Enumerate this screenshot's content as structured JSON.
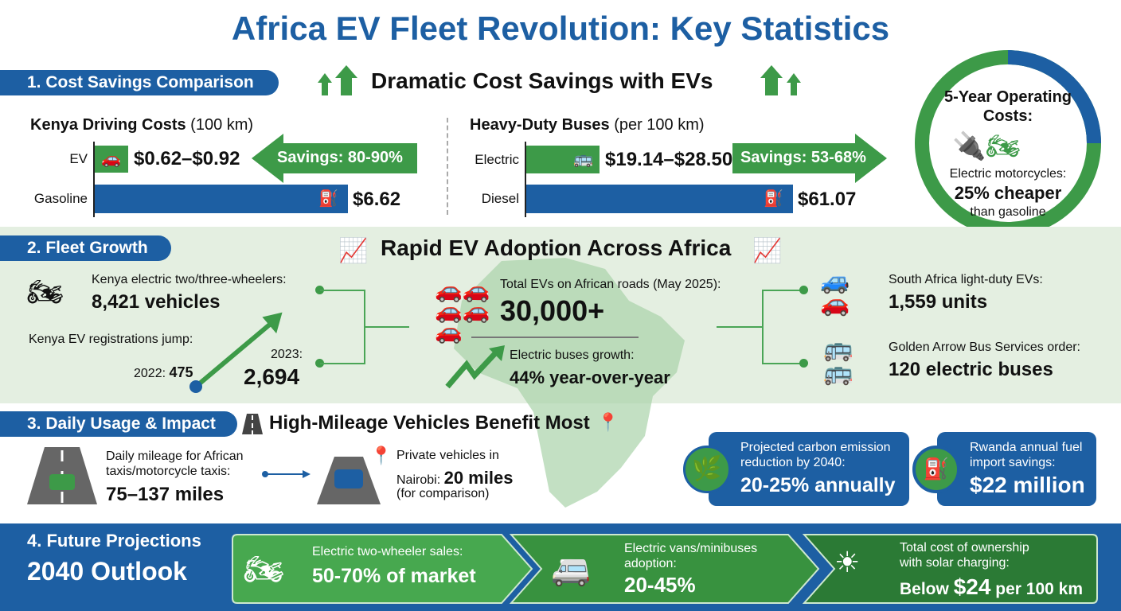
{
  "title": "Africa EV Fleet Revolution: Key Statistics",
  "colors": {
    "blue": "#1d5fa3",
    "green": "#3d9a48",
    "light_green": "#e4efe1"
  },
  "s1": {
    "pill": "1. Cost Savings Comparison",
    "heading": "Dramatic Cost Savings with EVs",
    "kenya": {
      "title": "Kenya Driving Costs",
      "unit": "(100 km)",
      "ev_label": "EV",
      "ev_value": "$0.62–$0.92",
      "gas_label": "Gasoline",
      "gas_value": "$6.62",
      "savings": "Savings: 80-90%"
    },
    "bus": {
      "title": "Heavy-Duty Buses",
      "unit": "(per 100 km)",
      "el_label": "Electric",
      "el_value": "$19.14–$28.50",
      "diesel_label": "Diesel",
      "diesel_value": "$61.07",
      "savings": "Savings: 53-68%"
    },
    "circle": {
      "title": "5-Year Operating Costs:",
      "line1": "Electric motorcycles:",
      "value": "25% cheaper",
      "line2": "than gasoline"
    }
  },
  "s2": {
    "pill": "2. Fleet Growth",
    "heading": "Rapid EV Adoption Across Africa",
    "two_wheel_label": "Kenya electric two/three-wheelers:",
    "two_wheel_value": "8,421 vehicles",
    "reg_label": "Kenya EV registrations jump:",
    "y2022": "2022:",
    "v2022": "475",
    "y2023": "2023:",
    "v2023": "2,694",
    "total_label": "Total EVs on African roads (May 2025):",
    "total_value": "30,000+",
    "bus_growth_label": "Electric buses growth:",
    "bus_growth_value": "44% year-over-year",
    "sa_label": "South Africa light-duty EVs:",
    "sa_value": "1,559 units",
    "ga_label": "Golden Arrow Bus Services order:",
    "ga_value": "120 electric buses"
  },
  "s3": {
    "pill": "3. Daily Usage & Impact",
    "heading": "High-Mileage Vehicles Benefit Most",
    "taxi_label1": "Daily mileage for African",
    "taxi_label2": "taxis/motorcycle taxis:",
    "taxi_value": "75–137 miles",
    "priv_label1": "Private vehicles in",
    "priv_label2": "Nairobi:",
    "priv_value": "20 miles",
    "priv_note": "(for comparison)",
    "carbon_l1": "Projected carbon emission",
    "carbon_l2": "reduction by 2040:",
    "carbon_value": "20-25% annually",
    "rw_l1": "Rwanda annual fuel",
    "rw_l2": "import savings:",
    "rw_value": "$22 million"
  },
  "s4": {
    "title1": "4. Future Projections",
    "title2": "2040 Outlook",
    "c1_label": "Electric two-wheeler sales:",
    "c1_value": "50-70% of market",
    "c2_label1": "Electric vans/minibuses",
    "c2_label2": "adoption:",
    "c2_value": "20-45%",
    "c3_label1": "Total cost of ownership",
    "c3_label2": "with solar charging:",
    "c3_pre": "Below",
    "c3_value": "$24",
    "c3_post": "per 100 km"
  }
}
